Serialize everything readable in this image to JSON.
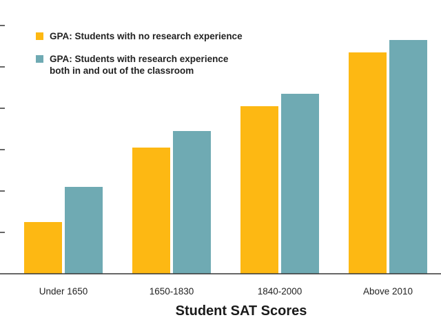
{
  "legend": [
    {
      "label": "GPA: Students with no research experience",
      "color": "#FDB813"
    },
    {
      "label": "GPA: Students with research experience\nboth in and out of the classroom",
      "color": "#6FAAB3"
    }
  ],
  "chart_data": {
    "type": "bar",
    "title": "",
    "xlabel": "Student SAT Scores",
    "ylabel": "",
    "categories": [
      "Under 1650",
      "1650-1830",
      "1840-2000",
      "Above 2010"
    ],
    "series": [
      {
        "name": "GPA: Students with no research experience",
        "color": "#FDB813",
        "values": [
          1.25,
          3.05,
          4.05,
          5.35
        ]
      },
      {
        "name": "GPA: Students with research experience both in and out of the classroom",
        "color": "#6FAAB3",
        "values": [
          2.1,
          3.45,
          4.35,
          5.65
        ]
      }
    ],
    "ylim": [
      0,
      6
    ],
    "yticks": [
      1,
      2,
      3,
      4,
      5,
      6
    ],
    "tick_labels_visible": false,
    "grid": false,
    "legend_position": "top-left"
  }
}
